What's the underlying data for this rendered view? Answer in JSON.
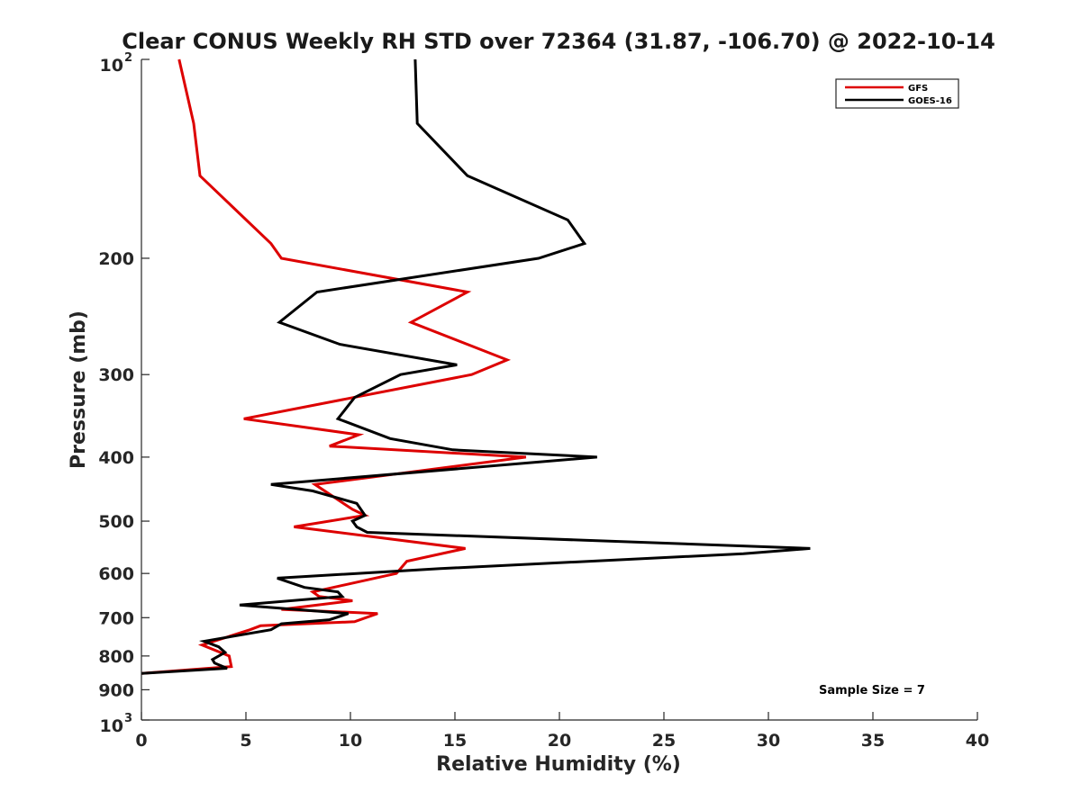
{
  "chart_data": {
    "type": "line",
    "title": "Clear CONUS Weekly RH STD over 72364 (31.87, -106.70) @ 2022-10-14",
    "xlabel": "Relative Humidity (%)",
    "ylabel": "Pressure (mb)",
    "xlim": [
      0,
      40
    ],
    "ylim": [
      100,
      1000
    ],
    "y_scale": "log",
    "y_reversed": true,
    "x_ticks": [
      "0",
      "5",
      "10",
      "15",
      "20",
      "25",
      "30",
      "35",
      "40"
    ],
    "y_ticks": [
      {
        "value": 100,
        "base": "10",
        "exp": "2"
      },
      {
        "value": 200,
        "label": "200"
      },
      {
        "value": 300,
        "label": "300"
      },
      {
        "value": 400,
        "label": "400"
      },
      {
        "value": 500,
        "label": "500"
      },
      {
        "value": 600,
        "label": "600"
      },
      {
        "value": 700,
        "label": "700"
      },
      {
        "value": 800,
        "label": "800"
      },
      {
        "value": 900,
        "label": "900"
      },
      {
        "value": 1000,
        "base": "10",
        "exp": "3"
      }
    ],
    "legend": {
      "placement": "top-right"
    },
    "annotation": "Sample Size = 7",
    "series": [
      {
        "name": "GFS",
        "color": "#dd0000",
        "points": [
          [
            1.8,
            100
          ],
          [
            2.5,
            125
          ],
          [
            2.8,
            150
          ],
          [
            6.2,
            190
          ],
          [
            6.7,
            200
          ],
          [
            15.6,
            225
          ],
          [
            12.9,
            250
          ],
          [
            17.5,
            285
          ],
          [
            15.8,
            300
          ],
          [
            4.9,
            350
          ],
          [
            10.4,
            370
          ],
          [
            9.0,
            385
          ],
          [
            18.4,
            400
          ],
          [
            8.3,
            440
          ],
          [
            10.1,
            480
          ],
          [
            10.7,
            490
          ],
          [
            7.3,
            510
          ],
          [
            15.5,
            550
          ],
          [
            12.7,
            575
          ],
          [
            12.2,
            600
          ],
          [
            8.2,
            640
          ],
          [
            8.5,
            650
          ],
          [
            10.1,
            660
          ],
          [
            6.7,
            680
          ],
          [
            11.3,
            690
          ],
          [
            10.2,
            710
          ],
          [
            5.7,
            720
          ],
          [
            5.2,
            730
          ],
          [
            2.9,
            770
          ],
          [
            4.2,
            800
          ],
          [
            4.3,
            830
          ],
          [
            0,
            850
          ]
        ]
      },
      {
        "name": "GOES-16",
        "color": "#000000",
        "points": [
          [
            13.1,
            100
          ],
          [
            13.2,
            125
          ],
          [
            15.6,
            150
          ],
          [
            20.4,
            175
          ],
          [
            21.2,
            190
          ],
          [
            19.0,
            200
          ],
          [
            8.4,
            225
          ],
          [
            6.6,
            250
          ],
          [
            9.5,
            270
          ],
          [
            15.1,
            290
          ],
          [
            12.4,
            300
          ],
          [
            10.2,
            325
          ],
          [
            9.4,
            350
          ],
          [
            11.9,
            375
          ],
          [
            14.9,
            390
          ],
          [
            21.8,
            400
          ],
          [
            6.2,
            440
          ],
          [
            8.2,
            450
          ],
          [
            10.3,
            470
          ],
          [
            10.7,
            490
          ],
          [
            10.1,
            500
          ],
          [
            10.3,
            510
          ],
          [
            10.8,
            520
          ],
          [
            32.0,
            550
          ],
          [
            28.8,
            560
          ],
          [
            14.3,
            590
          ],
          [
            6.5,
            610
          ],
          [
            7.8,
            630
          ],
          [
            9.4,
            640
          ],
          [
            9.6,
            650
          ],
          [
            4.7,
            670
          ],
          [
            9.9,
            690
          ],
          [
            9.0,
            705
          ],
          [
            6.7,
            715
          ],
          [
            6.2,
            730
          ],
          [
            3.0,
            760
          ],
          [
            3.7,
            775
          ],
          [
            4.0,
            790
          ],
          [
            3.4,
            810
          ],
          [
            3.5,
            820
          ],
          [
            3.9,
            830
          ],
          [
            4.1,
            835
          ],
          [
            0,
            850
          ]
        ]
      }
    ]
  }
}
